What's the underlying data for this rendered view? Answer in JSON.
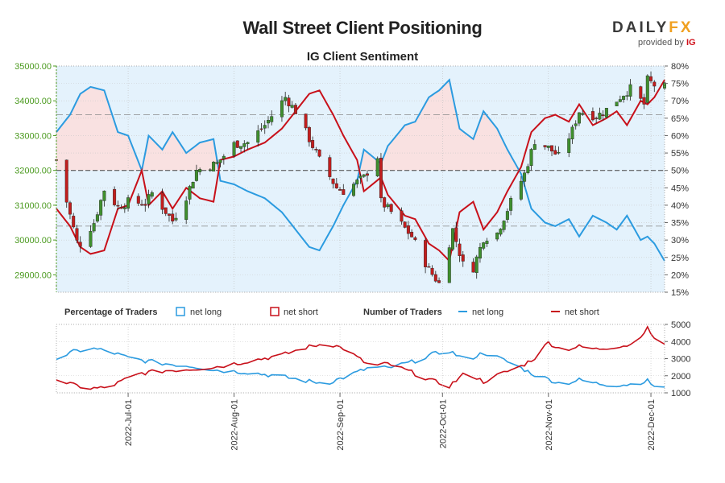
{
  "title": "Wall Street Client Positioning",
  "subtitle": "IG Client Sentiment",
  "logo": {
    "main": "DAILY",
    "accent": "FX",
    "provided_by": "provided by",
    "brand": "IG"
  },
  "colors": {
    "long": "#2b9be0",
    "short": "#c8101a",
    "long_fill": "#e4f2fc",
    "short_fill": "#f9e1e1",
    "price_axis": "#4a9a1e",
    "candle_up": "#3f8f2e",
    "candle_down": "#c21e1e"
  },
  "legend": {
    "percentage_title": "Percentage of Traders",
    "number_title": "Number of Traders",
    "net_long": "net long",
    "net_short": "net short"
  },
  "chart_data": [
    {
      "type": "candlestick+area",
      "name": "price-and-sentiment",
      "price_ylim": [
        28500,
        35000
      ],
      "price_ticks": [
        "35000.00",
        "34000.00",
        "33000.00",
        "32000.00",
        "31000.00",
        "30000.00",
        "29000.00"
      ],
      "sentiment_ylim": [
        15,
        80
      ],
      "sentiment_ticks": [
        "80%",
        "75%",
        "70%",
        "65%",
        "60%",
        "55%",
        "50%",
        "45%",
        "40%",
        "35%",
        "30%",
        "25%",
        "20%",
        "15%"
      ],
      "reference_lines": [
        66,
        50,
        34
      ],
      "x_range": [
        "2022-06-10",
        "2022-12-05"
      ],
      "x_ticks": [
        "2022-Jul-01",
        "2022-Aug-01",
        "2022-Sep-01",
        "2022-Oct-01",
        "2022-Nov-01",
        "2022-Dec-01"
      ],
      "price_anchors": [
        [
          "2022-06-10",
          32300
        ],
        [
          "2022-06-13",
          31100
        ],
        [
          "2022-06-16",
          29950
        ],
        [
          "2022-06-17",
          29900
        ],
        [
          "2022-06-21",
          30500
        ],
        [
          "2022-06-24",
          31450
        ],
        [
          "2022-06-28",
          30950
        ],
        [
          "2022-07-01",
          31100
        ],
        [
          "2022-07-06",
          31050
        ],
        [
          "2022-07-08",
          31350
        ],
        [
          "2022-07-14",
          30550
        ],
        [
          "2022-07-18",
          31250
        ],
        [
          "2022-07-21",
          32000
        ],
        [
          "2022-07-27",
          32200
        ],
        [
          "2022-08-01",
          32750
        ],
        [
          "2022-08-05",
          32800
        ],
        [
          "2022-08-10",
          33300
        ],
        [
          "2022-08-16",
          34100
        ],
        [
          "2022-08-19",
          33700
        ],
        [
          "2022-08-23",
          32900
        ],
        [
          "2022-08-26",
          32300
        ],
        [
          "2022-08-31",
          31500
        ],
        [
          "2022-09-02",
          31400
        ],
        [
          "2022-09-08",
          31800
        ],
        [
          "2022-09-12",
          32400
        ],
        [
          "2022-09-13",
          31100
        ],
        [
          "2022-09-16",
          30800
        ],
        [
          "2022-09-22",
          30100
        ],
        [
          "2022-09-27",
          29150
        ],
        [
          "2022-09-30",
          28750
        ],
        [
          "2022-10-04",
          30300
        ],
        [
          "2022-10-07",
          29300
        ],
        [
          "2022-10-10",
          29200
        ],
        [
          "2022-10-13",
          30050
        ],
        [
          "2022-10-17",
          30200
        ],
        [
          "2022-10-21",
          31100
        ],
        [
          "2022-10-25",
          31900
        ],
        [
          "2022-10-28",
          32850
        ],
        [
          "2022-11-01",
          32650
        ],
        [
          "2022-11-04",
          32400
        ],
        [
          "2022-11-08",
          33150
        ],
        [
          "2022-11-10",
          33700
        ],
        [
          "2022-11-15",
          33550
        ],
        [
          "2022-11-18",
          33750
        ],
        [
          "2022-11-23",
          34200
        ],
        [
          "2022-11-25",
          34350
        ],
        [
          "2022-11-29",
          33900
        ],
        [
          "2022-11-30",
          34600
        ],
        [
          "2022-12-02",
          34450
        ],
        [
          "2022-12-05",
          34400
        ]
      ],
      "net_long_pct_anchors": [
        [
          "2022-06-10",
          61
        ],
        [
          "2022-06-14",
          66
        ],
        [
          "2022-06-17",
          72
        ],
        [
          "2022-06-20",
          74
        ],
        [
          "2022-06-24",
          73
        ],
        [
          "2022-06-28",
          61
        ],
        [
          "2022-07-01",
          60
        ],
        [
          "2022-07-05",
          50
        ],
        [
          "2022-07-07",
          60
        ],
        [
          "2022-07-11",
          56
        ],
        [
          "2022-07-14",
          61
        ],
        [
          "2022-07-18",
          55
        ],
        [
          "2022-07-22",
          58
        ],
        [
          "2022-07-26",
          59
        ],
        [
          "2022-07-28",
          47
        ],
        [
          "2022-08-01",
          46
        ],
        [
          "2022-08-05",
          44
        ],
        [
          "2022-08-10",
          42
        ],
        [
          "2022-08-15",
          38
        ],
        [
          "2022-08-19",
          33
        ],
        [
          "2022-08-23",
          28
        ],
        [
          "2022-08-26",
          27
        ],
        [
          "2022-08-30",
          34
        ],
        [
          "2022-09-02",
          40
        ],
        [
          "2022-09-06",
          47
        ],
        [
          "2022-09-08",
          56
        ],
        [
          "2022-09-13",
          52
        ],
        [
          "2022-09-15",
          57
        ],
        [
          "2022-09-20",
          63
        ],
        [
          "2022-09-23",
          64
        ],
        [
          "2022-09-27",
          71
        ],
        [
          "2022-09-30",
          73
        ],
        [
          "2022-10-03",
          76
        ],
        [
          "2022-10-06",
          62
        ],
        [
          "2022-10-10",
          59
        ],
        [
          "2022-10-13",
          67
        ],
        [
          "2022-10-17",
          62
        ],
        [
          "2022-10-20",
          56
        ],
        [
          "2022-10-24",
          49
        ],
        [
          "2022-10-27",
          39
        ],
        [
          "2022-10-31",
          35
        ],
        [
          "2022-11-03",
          34
        ],
        [
          "2022-11-07",
          36
        ],
        [
          "2022-11-10",
          31
        ],
        [
          "2022-11-14",
          37
        ],
        [
          "2022-11-18",
          35
        ],
        [
          "2022-11-21",
          33
        ],
        [
          "2022-11-24",
          37
        ],
        [
          "2022-11-28",
          30
        ],
        [
          "2022-11-30",
          31
        ],
        [
          "2022-12-02",
          29
        ],
        [
          "2022-12-05",
          24
        ]
      ]
    },
    {
      "type": "line",
      "name": "number-of-traders",
      "ylim": [
        1000,
        5000
      ],
      "y_ticks": [
        "5000",
        "4000",
        "3000",
        "2000",
        "1000"
      ],
      "net_long_anchors": [
        [
          "2022-06-10",
          3000
        ],
        [
          "2022-06-15",
          3400
        ],
        [
          "2022-06-20",
          3600
        ],
        [
          "2022-06-25",
          3450
        ],
        [
          "2022-07-01",
          3050
        ],
        [
          "2022-07-05",
          2900
        ],
        [
          "2022-07-12",
          2700
        ],
        [
          "2022-07-20",
          2550
        ],
        [
          "2022-07-28",
          2300
        ],
        [
          "2022-08-05",
          2200
        ],
        [
          "2022-08-15",
          1950
        ],
        [
          "2022-08-22",
          1700
        ],
        [
          "2022-08-28",
          1550
        ],
        [
          "2022-09-02",
          1900
        ],
        [
          "2022-09-10",
          2500
        ],
        [
          "2022-09-15",
          2450
        ],
        [
          "2022-09-22",
          2800
        ],
        [
          "2022-09-28",
          3250
        ],
        [
          "2022-10-03",
          3450
        ],
        [
          "2022-10-08",
          2900
        ],
        [
          "2022-10-13",
          3350
        ],
        [
          "2022-10-18",
          3000
        ],
        [
          "2022-10-24",
          2450
        ],
        [
          "2022-10-28",
          2050
        ],
        [
          "2022-11-01",
          1800
        ],
        [
          "2022-11-05",
          1500
        ],
        [
          "2022-11-10",
          1750
        ],
        [
          "2022-11-15",
          1550
        ],
        [
          "2022-11-20",
          1450
        ],
        [
          "2022-11-25",
          1500
        ],
        [
          "2022-11-30",
          1700
        ],
        [
          "2022-12-03",
          1250
        ],
        [
          "2022-12-05",
          1300
        ]
      ],
      "net_short_anchors": [
        [
          "2022-06-10",
          1800
        ],
        [
          "2022-06-15",
          1450
        ],
        [
          "2022-06-20",
          1250
        ],
        [
          "2022-06-25",
          1300
        ],
        [
          "2022-07-01",
          1850
        ],
        [
          "2022-07-05",
          2150
        ],
        [
          "2022-07-12",
          2300
        ],
        [
          "2022-07-20",
          2400
        ],
        [
          "2022-07-28",
          2550
        ],
        [
          "2022-08-05",
          2850
        ],
        [
          "2022-08-15",
          3200
        ],
        [
          "2022-08-22",
          3650
        ],
        [
          "2022-08-28",
          3900
        ],
        [
          "2022-09-02",
          3600
        ],
        [
          "2022-09-10",
          2550
        ],
        [
          "2022-09-15",
          2700
        ],
        [
          "2022-09-22",
          2200
        ],
        [
          "2022-09-28",
          1700
        ],
        [
          "2022-10-03",
          1400
        ],
        [
          "2022-10-08",
          2200
        ],
        [
          "2022-10-13",
          1650
        ],
        [
          "2022-10-18",
          2100
        ],
        [
          "2022-10-24",
          2550
        ],
        [
          "2022-10-28",
          3050
        ],
        [
          "2022-11-01",
          3950
        ],
        [
          "2022-11-05",
          3500
        ],
        [
          "2022-11-10",
          3700
        ],
        [
          "2022-11-15",
          3550
        ],
        [
          "2022-11-20",
          3700
        ],
        [
          "2022-11-25",
          3800
        ],
        [
          "2022-11-30",
          4750
        ],
        [
          "2022-12-03",
          3950
        ],
        [
          "2022-12-05",
          3800
        ]
      ]
    }
  ]
}
